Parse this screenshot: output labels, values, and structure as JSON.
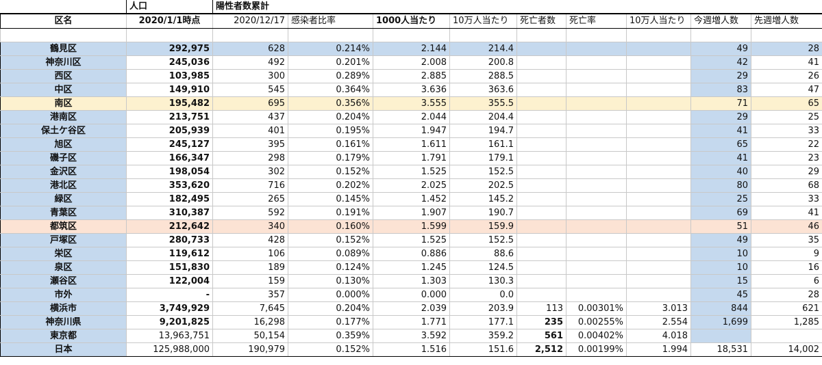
{
  "top": {
    "population": "人口",
    "cumulative": "陽性者数累計"
  },
  "headers": {
    "ward": "区名",
    "pop_date": "2020/1/1時点",
    "cum_date": "2020/12/17",
    "rate": "感染者比率",
    "per1000": "1000人当たり",
    "per100k": "10万人当たり",
    "deaths": "死亡者数",
    "death_rate": "死亡率",
    "death_per100k": "10万人当たり",
    "this_week": "今週増人数",
    "last_week": "先週増人数"
  },
  "rows": [
    {
      "name": "鶴見区",
      "pop": "292,975",
      "cum": "628",
      "rate": "0.214%",
      "per1000": "2.144",
      "per100k": "214.4",
      "tw": "49",
      "lw": "28"
    },
    {
      "name": "神奈川区",
      "pop": "245,036",
      "cum": "492",
      "rate": "0.201%",
      "per1000": "2.008",
      "per100k": "200.8",
      "tw": "42",
      "lw": "41"
    },
    {
      "name": "西区",
      "pop": "103,985",
      "cum": "300",
      "rate": "0.289%",
      "per1000": "2.885",
      "per100k": "288.5",
      "tw": "29",
      "lw": "26"
    },
    {
      "name": "中区",
      "pop": "149,910",
      "cum": "545",
      "rate": "0.364%",
      "per1000": "3.636",
      "per100k": "363.6",
      "tw": "83",
      "lw": "47"
    },
    {
      "name": "南区",
      "pop": "195,482",
      "cum": "695",
      "rate": "0.356%",
      "per1000": "3.555",
      "per100k": "355.5",
      "tw": "71",
      "lw": "65"
    },
    {
      "name": "港南区",
      "pop": "213,751",
      "cum": "437",
      "rate": "0.204%",
      "per1000": "2.044",
      "per100k": "204.4",
      "tw": "29",
      "lw": "25"
    },
    {
      "name": "保土ケ谷区",
      "pop": "205,939",
      "cum": "401",
      "rate": "0.195%",
      "per1000": "1.947",
      "per100k": "194.7",
      "tw": "41",
      "lw": "33"
    },
    {
      "name": "旭区",
      "pop": "245,127",
      "cum": "395",
      "rate": "0.161%",
      "per1000": "1.611",
      "per100k": "161.1",
      "tw": "65",
      "lw": "22"
    },
    {
      "name": "磯子区",
      "pop": "166,347",
      "cum": "298",
      "rate": "0.179%",
      "per1000": "1.791",
      "per100k": "179.1",
      "tw": "41",
      "lw": "23"
    },
    {
      "name": "金沢区",
      "pop": "198,054",
      "cum": "302",
      "rate": "0.152%",
      "per1000": "1.525",
      "per100k": "152.5",
      "tw": "40",
      "lw": "29"
    },
    {
      "name": "港北区",
      "pop": "353,620",
      "cum": "716",
      "rate": "0.202%",
      "per1000": "2.025",
      "per100k": "202.5",
      "tw": "80",
      "lw": "68"
    },
    {
      "name": "緑区",
      "pop": "182,495",
      "cum": "265",
      "rate": "0.145%",
      "per1000": "1.452",
      "per100k": "145.2",
      "tw": "25",
      "lw": "33"
    },
    {
      "name": "青葉区",
      "pop": "310,387",
      "cum": "592",
      "rate": "0.191%",
      "per1000": "1.907",
      "per100k": "190.7",
      "tw": "69",
      "lw": "41"
    },
    {
      "name": "都筑区",
      "pop": "212,642",
      "cum": "340",
      "rate": "0.160%",
      "per1000": "1.599",
      "per100k": "159.9",
      "tw": "51",
      "lw": "46"
    },
    {
      "name": "戸塚区",
      "pop": "280,733",
      "cum": "428",
      "rate": "0.152%",
      "per1000": "1.525",
      "per100k": "152.5",
      "tw": "49",
      "lw": "35"
    },
    {
      "name": "栄区",
      "pop": "119,612",
      "cum": "106",
      "rate": "0.089%",
      "per1000": "0.886",
      "per100k": "88.6",
      "tw": "10",
      "lw": "9"
    },
    {
      "name": "泉区",
      "pop": "151,830",
      "cum": "189",
      "rate": "0.124%",
      "per1000": "1.245",
      "per100k": "124.5",
      "tw": "10",
      "lw": "16"
    },
    {
      "name": "瀬谷区",
      "pop": "122,004",
      "cum": "159",
      "rate": "0.130%",
      "per1000": "1.303",
      "per100k": "130.3",
      "tw": "15",
      "lw": "6"
    },
    {
      "name": "市外",
      "pop": "-",
      "cum": "357",
      "rate": "0.000%",
      "per1000": "0.000",
      "per100k": "0.0",
      "tw": "45",
      "lw": "28"
    }
  ],
  "summary": [
    {
      "name": "横浜市",
      "pop": "3,749,929",
      "cum": "7,645",
      "rate": "0.204%",
      "per1000": "2.039",
      "per100k": "203.9",
      "deaths": "113",
      "death_rate": "0.00301%",
      "death_per100k": "3.013",
      "tw": "844",
      "lw": "621"
    },
    {
      "name": "神奈川県",
      "pop": "9,201,825",
      "cum": "16,298",
      "rate": "0.177%",
      "per1000": "1.771",
      "per100k": "177.1",
      "deaths": "235",
      "death_rate": "0.00255%",
      "death_per100k": "2.554",
      "tw": "1,699",
      "lw": "1,285"
    },
    {
      "name": "東京都",
      "pop": "13,963,751",
      "cum": "50,154",
      "rate": "0.359%",
      "per1000": "3.592",
      "per100k": "359.2",
      "deaths": "561",
      "death_rate": "0.00402%",
      "death_per100k": "4.018",
      "tw": "",
      "lw": ""
    },
    {
      "name": "日本",
      "pop": "125,988,000",
      "cum": "190,979",
      "rate": "0.152%",
      "per1000": "1.516",
      "per100k": "151.6",
      "deaths": "2,512",
      "death_rate": "0.00199%",
      "death_per100k": "1.994",
      "tw": "18,531",
      "lw": "14,002"
    }
  ]
}
